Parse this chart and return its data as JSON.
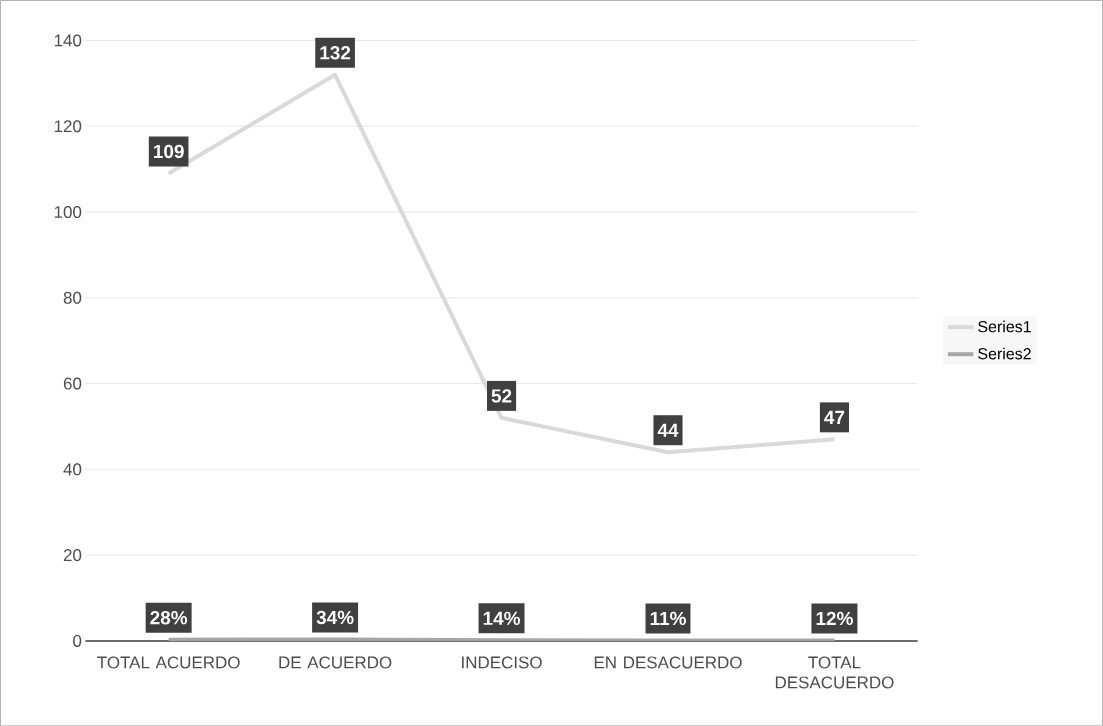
{
  "chart_data": {
    "type": "line",
    "categories": [
      "TOTAL ACUERDO",
      "DE ACUERDO",
      "INDECISO",
      "EN DESACUERDO",
      "TOTAL DESACUERDO"
    ],
    "series": [
      {
        "name": "Series1",
        "color": "#d9d9d9",
        "values": [
          109,
          132,
          52,
          44,
          47
        ],
        "value_labels": [
          "109",
          "132",
          "52",
          "44",
          "47"
        ]
      },
      {
        "name": "Series2",
        "color": "#a6a6a6",
        "values": [
          0.28,
          0.34,
          0.14,
          0.11,
          0.12
        ],
        "value_labels": [
          "28%",
          "34%",
          "14%",
          "11%",
          "12%"
        ]
      }
    ],
    "ylim": [
      0,
      140
    ],
    "yticks": [
      0,
      20,
      40,
      60,
      80,
      100,
      120,
      140
    ],
    "grid": "y",
    "legend": "right",
    "marker": "none",
    "line_style": "solid"
  }
}
